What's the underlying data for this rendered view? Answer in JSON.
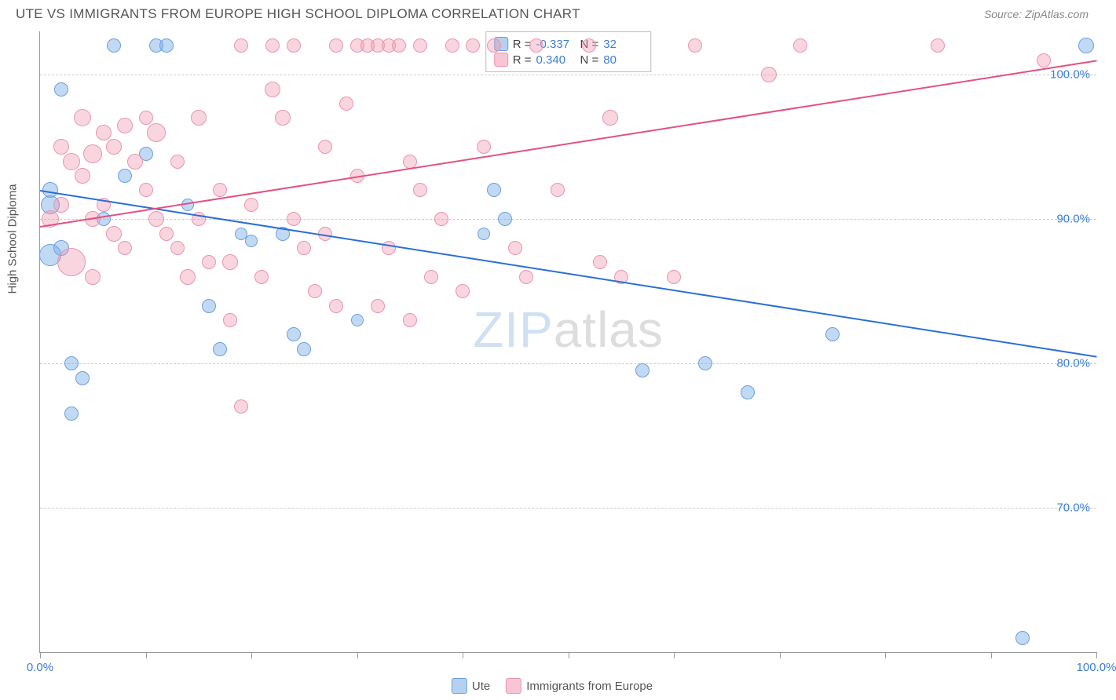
{
  "header": {
    "title": "UTE VS IMMIGRANTS FROM EUROPE HIGH SCHOOL DIPLOMA CORRELATION CHART",
    "source": "Source: ZipAtlas.com"
  },
  "chart": {
    "type": "scatter",
    "ylabel": "High School Diploma",
    "background_color": "#ffffff",
    "grid_color": "#cccccc",
    "axis_color": "#999999",
    "xlim": [
      0,
      100
    ],
    "ylim": [
      60,
      103
    ],
    "yticks": [
      {
        "v": 70,
        "label": "70.0%",
        "color": "#3b7dd8"
      },
      {
        "v": 80,
        "label": "80.0%",
        "color": "#3b7dd8"
      },
      {
        "v": 90,
        "label": "90.0%",
        "color": "#3b7dd8"
      },
      {
        "v": 100,
        "label": "100.0%",
        "color": "#3b7dd8"
      }
    ],
    "xticks": [
      0,
      10,
      20,
      30,
      40,
      50,
      60,
      70,
      80,
      90,
      100
    ],
    "xtick_labels": [
      {
        "v": 0,
        "label": "0.0%",
        "color": "#3b7dd8"
      },
      {
        "v": 100,
        "label": "100.0%",
        "color": "#3b7dd8"
      }
    ],
    "series": [
      {
        "name": "Ute",
        "fill_color": "rgba(120,170,230,0.45)",
        "stroke_color": "#6aa0de",
        "trend_color": "#2b6fd6",
        "trend": {
          "x1": 0,
          "y1": 92.0,
          "x2": 100,
          "y2": 80.5
        },
        "points": [
          {
            "x": 1,
            "y": 92,
            "r": 10
          },
          {
            "x": 1,
            "y": 91,
            "r": 12
          },
          {
            "x": 2,
            "y": 88,
            "r": 10
          },
          {
            "x": 3,
            "y": 80,
            "r": 9
          },
          {
            "x": 4,
            "y": 79,
            "r": 9
          },
          {
            "x": 3,
            "y": 76.5,
            "r": 9
          },
          {
            "x": 2,
            "y": 99,
            "r": 9
          },
          {
            "x": 7,
            "y": 102,
            "r": 9
          },
          {
            "x": 11,
            "y": 102,
            "r": 9
          },
          {
            "x": 12,
            "y": 102,
            "r": 9
          },
          {
            "x": 8,
            "y": 93,
            "r": 9
          },
          {
            "x": 6,
            "y": 90,
            "r": 9
          },
          {
            "x": 10,
            "y": 94.5,
            "r": 9
          },
          {
            "x": 14,
            "y": 91,
            "r": 8
          },
          {
            "x": 16,
            "y": 84,
            "r": 9
          },
          {
            "x": 17,
            "y": 81,
            "r": 9
          },
          {
            "x": 19,
            "y": 89,
            "r": 8
          },
          {
            "x": 20,
            "y": 88.5,
            "r": 8
          },
          {
            "x": 23,
            "y": 89,
            "r": 9
          },
          {
            "x": 24,
            "y": 82,
            "r": 9
          },
          {
            "x": 25,
            "y": 81,
            "r": 9
          },
          {
            "x": 30,
            "y": 83,
            "r": 8
          },
          {
            "x": 42,
            "y": 89,
            "r": 8
          },
          {
            "x": 43,
            "y": 92,
            "r": 9
          },
          {
            "x": 44,
            "y": 90,
            "r": 9
          },
          {
            "x": 57,
            "y": 79.5,
            "r": 9
          },
          {
            "x": 63,
            "y": 80,
            "r": 9
          },
          {
            "x": 67,
            "y": 78,
            "r": 9
          },
          {
            "x": 75,
            "y": 82,
            "r": 9
          },
          {
            "x": 93,
            "y": 61,
            "r": 9
          },
          {
            "x": 99,
            "y": 102,
            "r": 10
          },
          {
            "x": 1,
            "y": 87.5,
            "r": 14
          }
        ]
      },
      {
        "name": "Immigrants from Europe",
        "fill_color": "rgba(240,150,175,0.40)",
        "stroke_color": "#e895ae",
        "trend_color": "#e5507f",
        "trend": {
          "x1": 0,
          "y1": 89.5,
          "x2": 100,
          "y2": 101.0
        },
        "points": [
          {
            "x": 1,
            "y": 90,
            "r": 11
          },
          {
            "x": 2,
            "y": 91,
            "r": 10
          },
          {
            "x": 2,
            "y": 95,
            "r": 10
          },
          {
            "x": 3,
            "y": 94,
            "r": 11
          },
          {
            "x": 3,
            "y": 87,
            "r": 18
          },
          {
            "x": 4,
            "y": 93,
            "r": 10
          },
          {
            "x": 4,
            "y": 97,
            "r": 11
          },
          {
            "x": 5,
            "y": 94.5,
            "r": 12
          },
          {
            "x": 5,
            "y": 90,
            "r": 10
          },
          {
            "x": 6,
            "y": 96,
            "r": 10
          },
          {
            "x": 6,
            "y": 91,
            "r": 9
          },
          {
            "x": 7,
            "y": 95,
            "r": 10
          },
          {
            "x": 7,
            "y": 89,
            "r": 10
          },
          {
            "x": 8,
            "y": 96.5,
            "r": 10
          },
          {
            "x": 8,
            "y": 88,
            "r": 9
          },
          {
            "x": 9,
            "y": 94,
            "r": 10
          },
          {
            "x": 10,
            "y": 92,
            "r": 9
          },
          {
            "x": 10,
            "y": 97,
            "r": 9
          },
          {
            "x": 11,
            "y": 90,
            "r": 10
          },
          {
            "x": 11,
            "y": 96,
            "r": 12
          },
          {
            "x": 12,
            "y": 89,
            "r": 9
          },
          {
            "x": 13,
            "y": 94,
            "r": 9
          },
          {
            "x": 13,
            "y": 88,
            "r": 9
          },
          {
            "x": 14,
            "y": 86,
            "r": 10
          },
          {
            "x": 15,
            "y": 97,
            "r": 10
          },
          {
            "x": 15,
            "y": 90,
            "r": 9
          },
          {
            "x": 16,
            "y": 87,
            "r": 9
          },
          {
            "x": 17,
            "y": 92,
            "r": 9
          },
          {
            "x": 18,
            "y": 87,
            "r": 10
          },
          {
            "x": 18,
            "y": 83,
            "r": 9
          },
          {
            "x": 19,
            "y": 102,
            "r": 9
          },
          {
            "x": 19,
            "y": 77,
            "r": 9
          },
          {
            "x": 20,
            "y": 91,
            "r": 9
          },
          {
            "x": 21,
            "y": 86,
            "r": 9
          },
          {
            "x": 22,
            "y": 99,
            "r": 10
          },
          {
            "x": 22,
            "y": 102,
            "r": 9
          },
          {
            "x": 23,
            "y": 97,
            "r": 10
          },
          {
            "x": 24,
            "y": 90,
            "r": 9
          },
          {
            "x": 24,
            "y": 102,
            "r": 9
          },
          {
            "x": 25,
            "y": 88,
            "r": 9
          },
          {
            "x": 26,
            "y": 85,
            "r": 9
          },
          {
            "x": 27,
            "y": 95,
            "r": 9
          },
          {
            "x": 27,
            "y": 89,
            "r": 9
          },
          {
            "x": 28,
            "y": 84,
            "r": 9
          },
          {
            "x": 28,
            "y": 102,
            "r": 9
          },
          {
            "x": 29,
            "y": 98,
            "r": 9
          },
          {
            "x": 30,
            "y": 102,
            "r": 9
          },
          {
            "x": 30,
            "y": 93,
            "r": 9
          },
          {
            "x": 31,
            "y": 102,
            "r": 9
          },
          {
            "x": 32,
            "y": 84,
            "r": 9
          },
          {
            "x": 32,
            "y": 102,
            "r": 9
          },
          {
            "x": 33,
            "y": 102,
            "r": 9
          },
          {
            "x": 33,
            "y": 88,
            "r": 9
          },
          {
            "x": 34,
            "y": 102,
            "r": 9
          },
          {
            "x": 35,
            "y": 94,
            "r": 9
          },
          {
            "x": 35,
            "y": 83,
            "r": 9
          },
          {
            "x": 36,
            "y": 92,
            "r": 9
          },
          {
            "x": 36,
            "y": 102,
            "r": 9
          },
          {
            "x": 37,
            "y": 86,
            "r": 9
          },
          {
            "x": 38,
            "y": 90,
            "r": 9
          },
          {
            "x": 39,
            "y": 102,
            "r": 9
          },
          {
            "x": 40,
            "y": 85,
            "r": 9
          },
          {
            "x": 41,
            "y": 102,
            "r": 9
          },
          {
            "x": 42,
            "y": 95,
            "r": 9
          },
          {
            "x": 43,
            "y": 102,
            "r": 9
          },
          {
            "x": 45,
            "y": 88,
            "r": 9
          },
          {
            "x": 46,
            "y": 86,
            "r": 9
          },
          {
            "x": 47,
            "y": 102,
            "r": 9
          },
          {
            "x": 49,
            "y": 92,
            "r": 9
          },
          {
            "x": 52,
            "y": 102,
            "r": 9
          },
          {
            "x": 53,
            "y": 87,
            "r": 9
          },
          {
            "x": 54,
            "y": 97,
            "r": 10
          },
          {
            "x": 55,
            "y": 86,
            "r": 9
          },
          {
            "x": 60,
            "y": 86,
            "r": 9
          },
          {
            "x": 69,
            "y": 100,
            "r": 10
          },
          {
            "x": 72,
            "y": 102,
            "r": 9
          },
          {
            "x": 85,
            "y": 102,
            "r": 9
          },
          {
            "x": 95,
            "y": 101,
            "r": 9
          },
          {
            "x": 62,
            "y": 102,
            "r": 9
          },
          {
            "x": 5,
            "y": 86,
            "r": 10
          }
        ]
      }
    ],
    "stats_box": {
      "rows": [
        {
          "swatch_fill": "rgba(120,170,230,0.55)",
          "swatch_stroke": "#6aa0de",
          "r_label": "R =",
          "r_val": "-0.337",
          "n_label": "N =",
          "n_val": "32"
        },
        {
          "swatch_fill": "rgba(240,150,175,0.55)",
          "swatch_stroke": "#e895ae",
          "r_label": "R =",
          "r_val": "0.340",
          "n_label": "N =",
          "n_val": "80"
        }
      ]
    },
    "bottom_legend": [
      {
        "swatch_fill": "rgba(120,170,230,0.55)",
        "swatch_stroke": "#6aa0de",
        "label": "Ute"
      },
      {
        "swatch_fill": "rgba(240,150,175,0.55)",
        "swatch_stroke": "#e895ae",
        "label": "Immigrants from Europe"
      }
    ],
    "watermark": {
      "z": "ZIP",
      "rest": "atlas"
    }
  }
}
